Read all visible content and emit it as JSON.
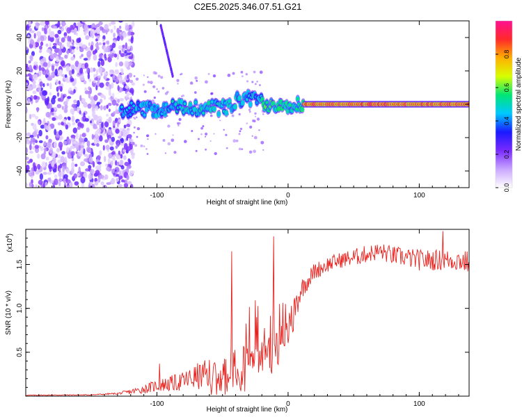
{
  "title": "C2E5.2025.346.07.51.G21",
  "colors": {
    "snr_line": "#e8201c",
    "axis": "#000000",
    "colorbar_stops": [
      "#ffffff",
      "#c9a6ff",
      "#7a2bff",
      "#1a1aff",
      "#00c8ff",
      "#00e676",
      "#d8ff00",
      "#ffb000",
      "#ff2a2a",
      "#ff1090"
    ]
  },
  "chart_data": [
    {
      "type": "heatmap",
      "name": "spectrogram",
      "xlabel": "Height of straight line (km)",
      "ylabel": "Frequency (Hz)",
      "xlim": [
        -200,
        138
      ],
      "ylim": [
        -50,
        50
      ],
      "x_ticks": [
        -100,
        0,
        100
      ],
      "x_tick_labels": [
        "-100",
        "0",
        "100"
      ],
      "y_ticks": [
        -40,
        -20,
        0,
        20,
        40
      ],
      "y_tick_labels": [
        "-40",
        "-20",
        "0",
        "20",
        "40"
      ],
      "colorbar": {
        "label": "Normalized spectral amplitude",
        "range": [
          0,
          1
        ],
        "ticks": [
          0.0,
          0.2,
          0.4,
          0.6,
          0.8
        ],
        "tick_labels": [
          "0.0",
          "0.2",
          "0.4",
          "0.6",
          "0.8"
        ]
      },
      "features": {
        "noise_region_x": [
          -200,
          -118
        ],
        "carrier_segments": [
          {
            "x": [
              -128,
              -90
            ],
            "freq": -3,
            "amplitude": 0.42
          },
          {
            "x": [
              -90,
              -40
            ],
            "freq": -2,
            "amplitude": 0.48
          },
          {
            "x": [
              -40,
              -20
            ],
            "freq": 3,
            "amplitude": 0.45
          },
          {
            "x": [
              -20,
              12
            ],
            "freq": 0,
            "amplitude": 0.55
          },
          {
            "x": [
              12,
              138
            ],
            "freq": 0,
            "amplitude": 0.95
          }
        ],
        "drift_line": {
          "x": [
            -97,
            -88
          ],
          "freq": [
            47,
            17
          ]
        }
      }
    },
    {
      "type": "line",
      "name": "snr",
      "xlabel": "Height of straight line (km)",
      "ylabel": "SNR (10 * v/v)",
      "y_scale_label": "(x10",
      "y_scale_exponent": "4",
      "xlim": [
        -200,
        138
      ],
      "ylim": [
        0,
        1.9
      ],
      "x_ticks": [
        -100,
        0,
        100
      ],
      "x_tick_labels": [
        "-100",
        "0",
        "100"
      ],
      "y_ticks": [
        0.5,
        1.0,
        1.5
      ],
      "y_tick_labels": [
        "0.5",
        "1.0",
        "1.5"
      ],
      "series": [
        {
          "name": "SNR",
          "envelope_x": [
            -200,
            -150,
            -130,
            -120,
            -110,
            -100,
            -90,
            -80,
            -70,
            -60,
            -50,
            -40,
            -30,
            -20,
            -10,
            0,
            5,
            10,
            20,
            30,
            40,
            50,
            60,
            70,
            80,
            90,
            100,
            110,
            120,
            130,
            138
          ],
          "envelope_y": [
            0.01,
            0.015,
            0.03,
            0.05,
            0.08,
            0.12,
            0.14,
            0.17,
            0.22,
            0.25,
            0.3,
            0.4,
            0.6,
            0.7,
            0.75,
            0.85,
            1.0,
            1.22,
            1.42,
            1.5,
            1.55,
            1.58,
            1.62,
            1.65,
            1.6,
            1.58,
            1.55,
            1.55,
            1.55,
            1.55,
            1.52
          ],
          "spread_y": [
            0.005,
            0.005,
            0.01,
            0.03,
            0.05,
            0.07,
            0.09,
            0.11,
            0.15,
            0.18,
            0.22,
            0.3,
            0.45,
            0.5,
            0.35,
            0.25,
            0.2,
            0.12,
            0.1,
            0.09,
            0.09,
            0.1,
            0.1,
            0.1,
            0.11,
            0.11,
            0.12,
            0.12,
            0.12,
            0.13,
            0.13
          ],
          "peaks": [
            {
              "x": -98,
              "y": 0.37
            },
            {
              "x": -43,
              "y": 1.65
            },
            {
              "x": -11,
              "y": 1.82
            },
            {
              "x": 118,
              "y": 1.88
            }
          ]
        }
      ]
    }
  ]
}
